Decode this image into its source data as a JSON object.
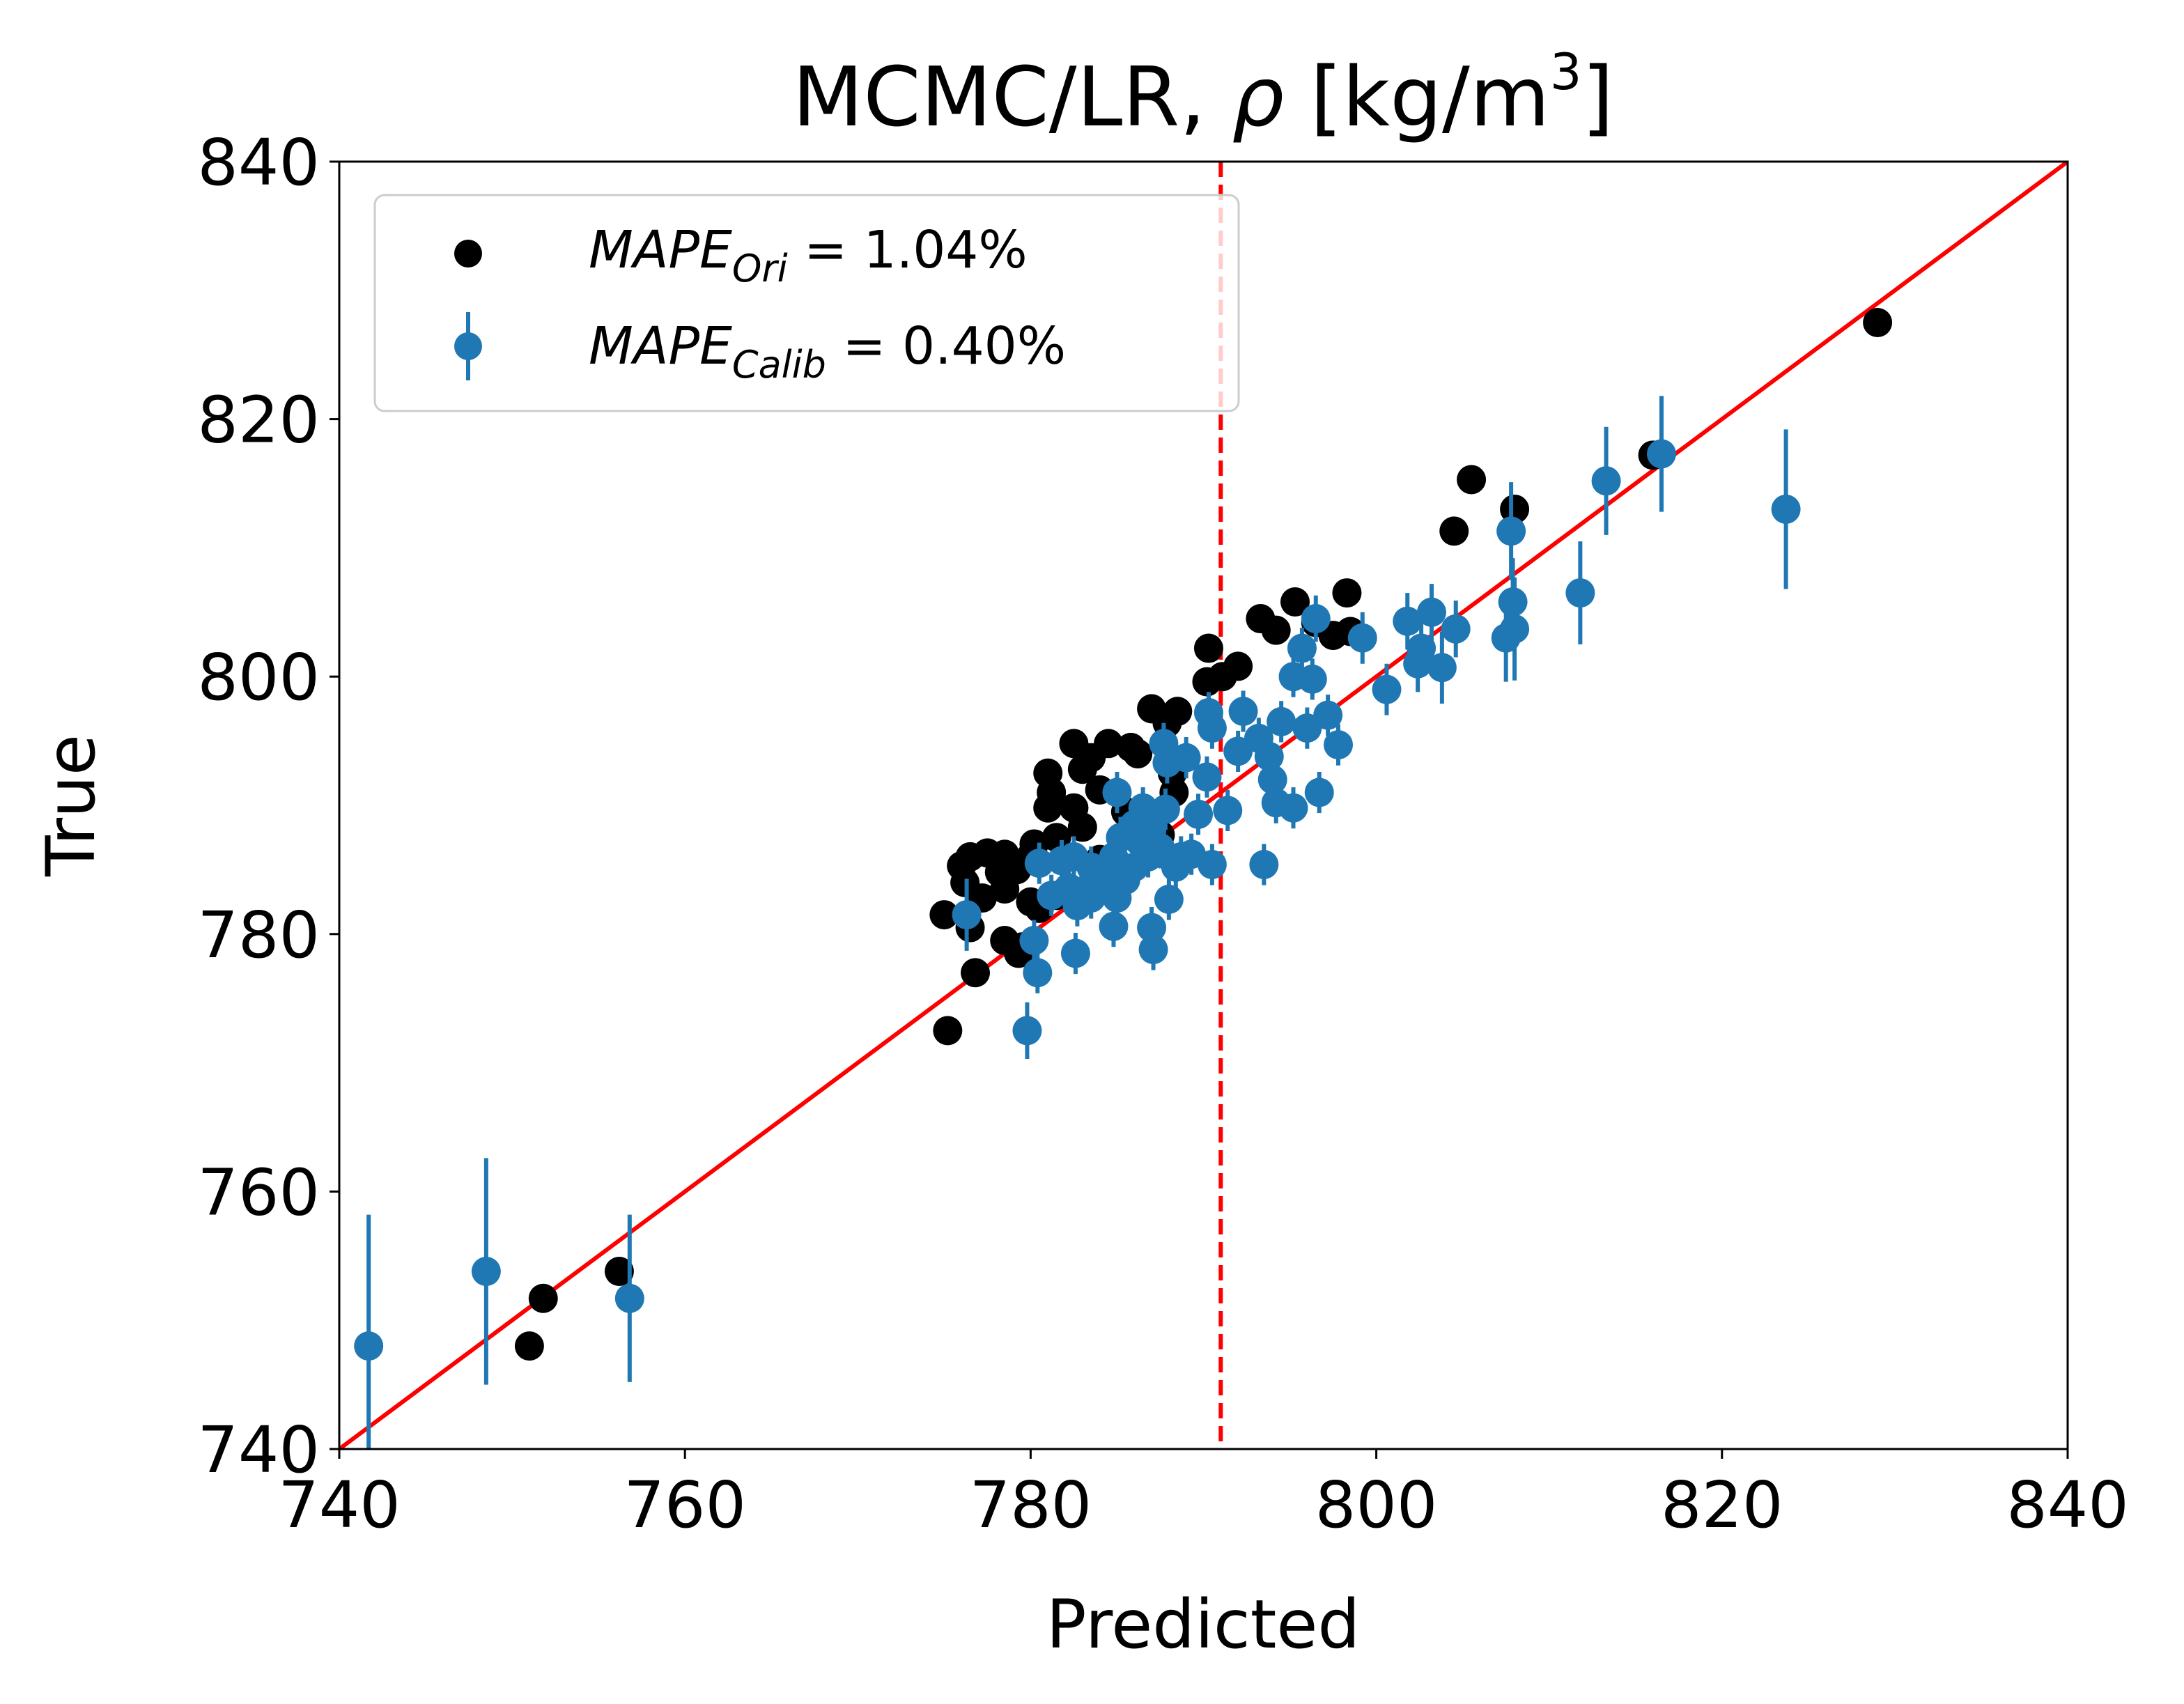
{
  "chart_data": {
    "type": "scatter",
    "title": {
      "main": "MCMC/LR, ",
      "symbol": "ρ",
      "units": " [kg/m",
      "exponent": "3",
      "end": "]"
    },
    "xlabel": "Predicted",
    "ylabel": "True",
    "xlim": [
      740,
      840
    ],
    "ylim": [
      740,
      840
    ],
    "xticks": [
      "740",
      "760",
      "780",
      "800",
      "820",
      "840"
    ],
    "yticks": [
      "740",
      "760",
      "780",
      "800",
      "820",
      "840"
    ],
    "grid": false,
    "legend_position": "upper-left",
    "reference_line": {
      "type": "identity",
      "color": "#ff0000"
    },
    "threshold_line": {
      "x": 791,
      "style": "dashed",
      "color": "#ff0000"
    },
    "legend": [
      {
        "symbol": "dot",
        "color": "#000000",
        "name_base": "MAPE",
        "name_sub": "Ori",
        "value_text": " = 1.04%"
      },
      {
        "symbol": "errorbar-dot",
        "color": "#1f77b4",
        "name_base": "MAPE",
        "name_sub": "Calib",
        "value_text": " = 0.40%"
      }
    ],
    "series": [
      {
        "name": "MAPE_Ori = 1.04%",
        "color": "#000000",
        "points": [
          [
            829,
            827.5
          ],
          [
            816,
            817.2
          ],
          [
            805.5,
            815.3
          ],
          [
            804.5,
            811.3
          ],
          [
            808,
            813
          ],
          [
            798.3,
            806.5
          ],
          [
            795.3,
            805.8
          ],
          [
            796.5,
            804.2
          ],
          [
            793.3,
            804.5
          ],
          [
            797.5,
            803.2
          ],
          [
            794.2,
            803.6
          ],
          [
            798.5,
            803.5
          ],
          [
            790.3,
            802.2
          ],
          [
            792,
            800.8
          ],
          [
            791.1,
            800
          ],
          [
            790.2,
            799.6
          ],
          [
            787,
            797.5
          ],
          [
            788.5,
            797.3
          ],
          [
            787.9,
            796.4
          ],
          [
            784.5,
            794.8
          ],
          [
            782.5,
            794.8
          ],
          [
            785.8,
            794.5
          ],
          [
            783.5,
            793.7
          ],
          [
            786.2,
            794
          ],
          [
            788.2,
            792.5
          ],
          [
            783,
            792.8
          ],
          [
            784,
            791.2
          ],
          [
            781,
            792.5
          ],
          [
            788.3,
            791
          ],
          [
            781.2,
            791
          ],
          [
            782.5,
            789.8
          ],
          [
            781,
            789.8
          ],
          [
            785.5,
            789.5
          ],
          [
            783,
            788.3
          ],
          [
            787.5,
            787.7
          ],
          [
            781.5,
            787.5
          ],
          [
            780.2,
            787
          ],
          [
            776.5,
            786
          ],
          [
            777.5,
            786.3
          ],
          [
            778.5,
            786.2
          ],
          [
            780,
            786
          ],
          [
            779.2,
            785
          ],
          [
            784,
            785.8
          ],
          [
            776,
            785.3
          ],
          [
            778.2,
            784.8
          ],
          [
            776.2,
            784
          ],
          [
            778.5,
            783.5
          ],
          [
            780,
            782.5
          ],
          [
            777.2,
            782.8
          ],
          [
            781.5,
            783
          ],
          [
            780.5,
            782
          ],
          [
            775,
            781.5
          ],
          [
            776.5,
            780.5
          ],
          [
            778.5,
            779.5
          ],
          [
            779.5,
            779
          ],
          [
            779.3,
            778.5
          ],
          [
            776.8,
            777
          ],
          [
            775.2,
            772.5
          ],
          [
            756.2,
            753.8
          ],
          [
            751.8,
            751.7
          ],
          [
            751,
            748
          ]
        ]
      },
      {
        "name": "MAPE_Calib = 0.40%",
        "color": "#1f77b4",
        "points": [
          [
            816.5,
            817.3,
            4.5
          ],
          [
            813.3,
            815.2,
            4.2
          ],
          [
            823.7,
            813,
            6.2
          ],
          [
            807.8,
            811.3,
            3.8
          ],
          [
            811.8,
            806.5,
            4
          ],
          [
            807.9,
            805.8,
            3.4
          ],
          [
            808,
            803.7,
            4
          ],
          [
            807.5,
            803,
            3.4
          ],
          [
            803.2,
            805,
            2.2
          ],
          [
            804.6,
            803.7,
            2.2
          ],
          [
            801.8,
            804.3,
            2.2
          ],
          [
            802.6,
            802.2,
            2.2
          ],
          [
            802.4,
            801,
            2.2
          ],
          [
            803.8,
            800.7,
            2.8
          ],
          [
            800.6,
            799,
            2
          ],
          [
            799.2,
            803,
            2
          ],
          [
            796.5,
            804.5,
            1.8
          ],
          [
            795.7,
            802.2,
            1.6
          ],
          [
            795.2,
            800,
            1.6
          ],
          [
            796.3,
            799.8,
            1.6
          ],
          [
            797.2,
            797,
            1.6
          ],
          [
            796,
            796,
            1.6
          ],
          [
            797.8,
            794.7,
            1.6
          ],
          [
            794.5,
            796.5,
            1.6
          ],
          [
            792.3,
            797.3,
            1.6
          ],
          [
            790.3,
            797.2,
            1.6
          ],
          [
            790.5,
            796,
            1.6
          ],
          [
            793.2,
            795.2,
            1.6
          ],
          [
            792,
            794.2,
            1.6
          ],
          [
            793.8,
            793.8,
            1.6
          ],
          [
            789,
            793.7,
            1.6
          ],
          [
            787.7,
            794.8,
            1.6
          ],
          [
            787.9,
            793.3,
            1.6
          ],
          [
            790.2,
            792.2,
            1.6
          ],
          [
            794,
            792,
            1.6
          ],
          [
            796.7,
            791,
            1.6
          ],
          [
            794.2,
            790.2,
            1.6
          ],
          [
            795.2,
            789.8,
            1.6
          ],
          [
            791.4,
            789.6,
            1.6
          ],
          [
            789.7,
            789.3,
            1.6
          ],
          [
            785,
            791,
            1.6
          ],
          [
            786.5,
            789.8,
            1.6
          ],
          [
            787.8,
            789.7,
            1.6
          ],
          [
            786,
            788.5,
            1.6
          ],
          [
            787,
            788,
            1.6
          ],
          [
            785.2,
            787.5,
            1.6
          ],
          [
            786.3,
            787.2,
            1.6
          ],
          [
            787.5,
            786.7,
            1.6
          ],
          [
            784.8,
            786,
            1.6
          ],
          [
            786.8,
            786,
            1.6
          ],
          [
            788.7,
            786,
            1.6
          ],
          [
            789.3,
            786.2,
            1.6
          ],
          [
            782.5,
            786,
            1.6
          ],
          [
            781.8,
            785.7,
            1.6
          ],
          [
            780.5,
            785.5,
            1.6
          ],
          [
            783.5,
            785.2,
            1.6
          ],
          [
            786,
            785.2,
            1.6
          ],
          [
            788.4,
            785.2,
            1.6
          ],
          [
            790.5,
            785.4,
            1.6
          ],
          [
            793.5,
            785.4,
            1.6
          ],
          [
            784.5,
            784.5,
            1.6
          ],
          [
            785.5,
            784.2,
            1.6
          ],
          [
            783.5,
            783.8,
            1.6
          ],
          [
            784.7,
            783.5,
            1.6
          ],
          [
            782.2,
            783.6,
            1.6
          ],
          [
            781.2,
            783,
            1.6
          ],
          [
            783.5,
            782.8,
            1.6
          ],
          [
            785,
            782.8,
            1.6
          ],
          [
            788,
            782.7,
            1.6
          ],
          [
            782.7,
            782.2,
            1.6
          ],
          [
            776.3,
            781.5,
            2.8
          ],
          [
            787,
            780.5,
            1.6
          ],
          [
            784.8,
            780.6,
            1.6
          ],
          [
            780.2,
            779.5,
            1.6
          ],
          [
            787.1,
            778.8,
            1.6
          ],
          [
            782.6,
            778.5,
            1.6
          ],
          [
            780.4,
            777,
            1.6
          ],
          [
            779.8,
            772.5,
            2.2
          ],
          [
            748.5,
            753.8,
            8.8
          ],
          [
            756.8,
            751.7,
            6.5
          ],
          [
            741.7,
            748,
            10.2
          ]
        ]
      }
    ]
  }
}
